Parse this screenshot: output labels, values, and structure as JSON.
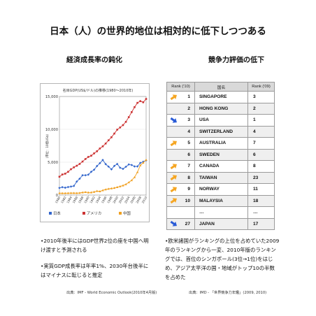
{
  "page": {
    "title": "日本（人）の世界的地位は相対的に低下しつつある"
  },
  "left": {
    "heading": "経済成長率の鈍化",
    "bullets": [
      "•2010年後半にはGDP世界2位の座を中国へ明け渡すと予測される",
      "•実質GDP成長率は年率1%、2030年台後半にはマイナスに転じると推定"
    ],
    "source": "出典：IMF - World Economic Outlook(2010年4月版)"
  },
  "right": {
    "heading": "競争力評価の低下",
    "bullets": [
      "•欧米諸国がランキングの上位を占めていた2009年のランキングから一変、2010年版のランキングでは、首位のシンガポール(3位→1位)をはじめ、アジア太平洋の国・地域がトップ10の半数を占めた"
    ],
    "source": "出典：IMD - 「世界競争力年鑑」(2009, 2010)"
  },
  "ranking": {
    "headers": [
      "Rank ('10)",
      "国名",
      "Rank ('09)"
    ],
    "colors": {
      "up": "#f5a623",
      "down": "#2a5bd7"
    },
    "rows": [
      {
        "rank10": "1",
        "country": "SINGAPORE",
        "rank09": "3",
        "icon": "up-arrow-icon"
      },
      {
        "rank10": "2",
        "country": "HONG KONG",
        "rank09": "2",
        "icon": ""
      },
      {
        "rank10": "3",
        "country": "USA",
        "rank09": "1",
        "icon": "down-arrow-icon"
      },
      {
        "rank10": "4",
        "country": "SWITZERLAND",
        "rank09": "4",
        "icon": ""
      },
      {
        "rank10": "5",
        "country": "AUSTRALIA",
        "rank09": "7",
        "icon": "up-arrow-icon"
      },
      {
        "rank10": "6",
        "country": "SWEDEN",
        "rank09": "6",
        "icon": ""
      },
      {
        "rank10": "7",
        "country": "CANADA",
        "rank09": "8",
        "icon": "up-arrow-icon"
      },
      {
        "rank10": "8",
        "country": "TAIWAN",
        "rank09": "23",
        "icon": "up-arrow-icon"
      },
      {
        "rank10": "9",
        "country": "NORWAY",
        "rank09": "11",
        "icon": "up-arrow-icon"
      },
      {
        "rank10": "10",
        "country": "MALAYSIA",
        "rank09": "18",
        "icon": "up-arrow-icon"
      },
      {
        "rank10": "",
        "country": "…",
        "rank09": "…",
        "icon": ""
      },
      {
        "rank10": "27",
        "country": "JAPAN",
        "rank09": "17",
        "icon": "down-arrow-icon"
      }
    ]
  },
  "chart_data": {
    "type": "line",
    "title": "名目GDP(US$/ドル)の推移(1980～2010年)",
    "xlabel": "",
    "ylabel": "(単位：10億US$)",
    "x": [
      1980,
      1981,
      1982,
      1983,
      1984,
      1985,
      1986,
      1987,
      1988,
      1989,
      1990,
      1991,
      1992,
      1993,
      1994,
      1995,
      1996,
      1997,
      1998,
      1999,
      2000,
      2001,
      2002,
      2003,
      2004,
      2005,
      2006,
      2007,
      2008,
      2009,
      2010
    ],
    "xticks": [
      1980,
      1982,
      1984,
      1986,
      1988,
      1990,
      1992,
      1994,
      1996,
      1998,
      2000,
      2002,
      2004,
      2006,
      2008,
      2010
    ],
    "ylim": [
      0,
      15000
    ],
    "yticks": [
      0,
      5000,
      10000,
      15000
    ],
    "ytick_labels": [
      "0",
      "5,000",
      "10,000",
      "15,000"
    ],
    "grid": true,
    "legend_position": "bottom",
    "series": [
      {
        "name": "日本",
        "color": "#3366cc",
        "values": [
          1087,
          1201,
          1117,
          1218,
          1295,
          1385,
          2051,
          2486,
          3015,
          3017,
          3104,
          3537,
          3853,
          4415,
          4850,
          5334,
          4706,
          4324,
          3915,
          4433,
          4731,
          4160,
          3981,
          4303,
          4656,
          4572,
          4357,
          4356,
          4887,
          5068,
          5273
        ]
      },
      {
        "name": "アメリカ",
        "color": "#cc3333",
        "values": [
          2788,
          3127,
          3253,
          3535,
          3931,
          4218,
          4460,
          4736,
          5100,
          5482,
          5801,
          5992,
          6342,
          6667,
          7085,
          7415,
          7839,
          8332,
          8794,
          9354,
          9952,
          10286,
          10642,
          11142,
          11853,
          12623,
          13377,
          14029,
          14292,
          14119,
          14624
        ]
      },
      {
        "name": "中国",
        "color": "#f0a020",
        "values": [
          302,
          283,
          283,
          302,
          310,
          306,
          297,
          324,
          404,
          451,
          390,
          409,
          488,
          613,
          559,
          728,
          856,
          953,
          1019,
          1083,
          1198,
          1325,
          1454,
          1641,
          1932,
          2257,
          2713,
          3494,
          4520,
          4909,
          5365
        ]
      }
    ]
  }
}
